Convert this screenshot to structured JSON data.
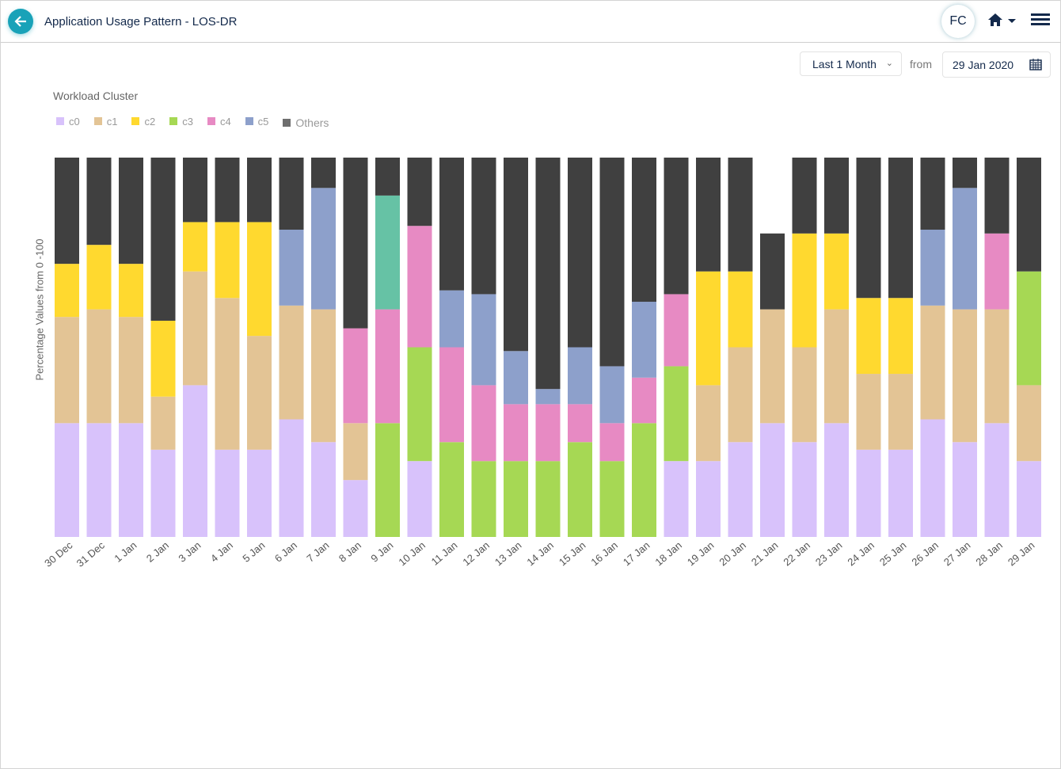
{
  "header": {
    "title": "Application Usage Pattern - LOS-DR",
    "avatar": "FC"
  },
  "controls": {
    "range": "Last 1 Month",
    "from_label": "from",
    "date": "29 Jan 2020"
  },
  "chart_data": {
    "type": "bar",
    "stacked": true,
    "legend_title": "Workload Cluster",
    "ylabel": "Percentage Values from 0 -100",
    "ylim": [
      0,
      100
    ],
    "categories": [
      "30 Dec",
      "31 Dec",
      "1 Jan",
      "2 Jan",
      "3 Jan",
      "4 Jan",
      "5 Jan",
      "6 Jan",
      "7 Jan",
      "8 Jan",
      "9 Jan",
      "10 Jan",
      "11 Jan",
      "12 Jan",
      "13 Jan",
      "14 Jan",
      "15 Jan",
      "16 Jan",
      "17 Jan",
      "18 Jan",
      "19 Jan",
      "20 Jan",
      "21 Jan",
      "22 Jan",
      "23 Jan",
      "24 Jan",
      "25 Jan",
      "26 Jan",
      "27 Jan",
      "28 Jan",
      "29 Jan"
    ],
    "series": [
      {
        "name": "c0",
        "color": "#d8c2fb",
        "values": [
          30,
          30,
          30,
          23,
          40,
          23,
          23,
          31,
          25,
          15,
          0,
          20,
          0,
          0,
          0,
          0,
          0,
          0,
          0,
          20,
          20,
          25,
          30,
          25,
          30,
          23,
          23,
          31,
          25,
          30,
          20
        ]
      },
      {
        "name": "c1",
        "color": "#e3c495",
        "values": [
          28,
          30,
          28,
          14,
          30,
          40,
          30,
          30,
          35,
          15,
          0,
          0,
          0,
          0,
          0,
          0,
          0,
          0,
          0,
          0,
          20,
          25,
          30,
          25,
          30,
          20,
          20,
          30,
          35,
          30,
          20
        ]
      },
      {
        "name": "c2",
        "color": "#ffd92f",
        "values": [
          14,
          17,
          14,
          20,
          13,
          20,
          30,
          0,
          0,
          0,
          0,
          0,
          0,
          0,
          0,
          0,
          0,
          0,
          0,
          0,
          30,
          20,
          0,
          30,
          20,
          20,
          20,
          0,
          0,
          0,
          0
        ]
      },
      {
        "name": "c3",
        "color": "#a6d854",
        "values": [
          0,
          0,
          0,
          0,
          0,
          0,
          0,
          0,
          0,
          0,
          30,
          30,
          25,
          20,
          20,
          20,
          25,
          20,
          30,
          25,
          0,
          0,
          0,
          0,
          0,
          0,
          0,
          0,
          0,
          0,
          30
        ]
      },
      {
        "name": "c4",
        "color": "#e78ac3",
        "values": [
          0,
          0,
          0,
          0,
          0,
          0,
          0,
          0,
          0,
          25,
          30,
          32,
          25,
          20,
          15,
          15,
          10,
          10,
          12,
          19,
          0,
          0,
          0,
          0,
          0,
          0,
          0,
          0,
          0,
          20,
          0
        ]
      },
      {
        "name": "c5",
        "color": "#8da0cb",
        "values": [
          0,
          0,
          0,
          0,
          0,
          0,
          0,
          20,
          32,
          0,
          0,
          0,
          15,
          24,
          14,
          4,
          15,
          15,
          20,
          0,
          0,
          0,
          0,
          0,
          0,
          0,
          0,
          20,
          32,
          0,
          0
        ]
      },
      {
        "name": "",
        "color": "#66c2a5",
        "in_legend": false,
        "values": [
          0,
          0,
          0,
          0,
          0,
          0,
          0,
          0,
          0,
          0,
          30,
          0,
          0,
          0,
          0,
          0,
          0,
          0,
          0,
          0,
          0,
          0,
          0,
          0,
          0,
          0,
          0,
          0,
          0,
          0,
          0
        ]
      },
      {
        "name": "Others",
        "color": "#404040",
        "values": [
          28,
          23,
          28,
          43,
          17,
          17,
          17,
          19,
          8,
          45,
          10,
          18,
          35,
          36,
          51,
          61,
          50,
          55,
          38,
          36,
          30,
          30,
          20,
          20,
          20,
          37,
          37,
          19,
          8,
          20,
          30
        ]
      }
    ]
  }
}
